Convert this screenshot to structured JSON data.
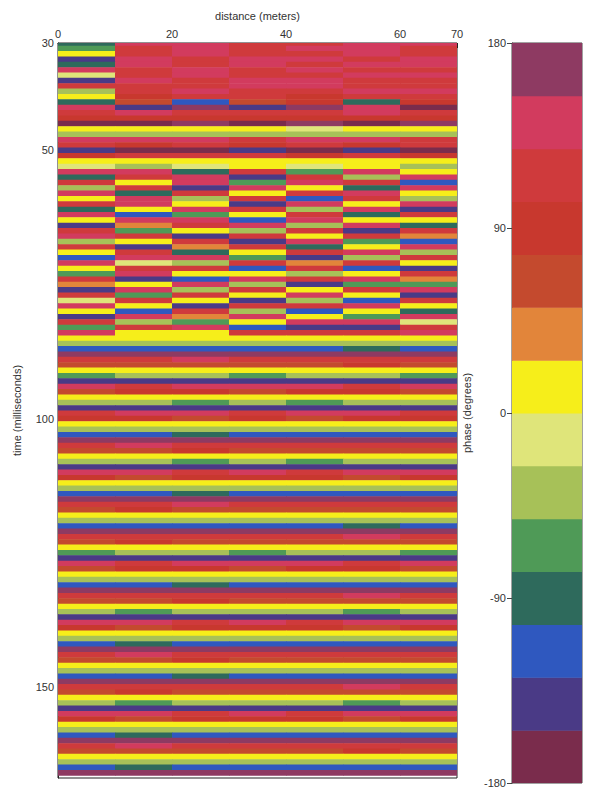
{
  "chart_data": {
    "type": "heatmap",
    "xlabel": "distance (meters)",
    "ylabel": "time (milliseconds)",
    "xlim": [
      0,
      70
    ],
    "xticks": [
      0,
      20,
      40,
      60,
      70
    ],
    "ylim": [
      30,
      167
    ],
    "yticks": [
      30,
      50,
      100,
      150
    ],
    "x": [
      5,
      15,
      25,
      35,
      45,
      55,
      65
    ],
    "y": [
      30,
      31,
      32,
      33,
      34,
      35,
      36,
      37,
      38,
      39,
      40,
      41,
      42,
      43,
      44,
      45,
      46,
      47,
      48,
      49,
      50,
      51,
      52,
      53,
      54,
      55,
      56,
      57,
      58,
      59,
      60,
      61,
      62,
      63,
      64,
      65,
      66,
      67,
      68,
      69,
      70,
      71,
      72,
      73,
      74,
      75,
      76,
      77,
      78,
      79,
      80,
      81,
      82,
      83,
      84,
      85,
      86,
      87,
      88,
      89,
      90,
      91,
      92,
      93,
      94,
      95,
      96,
      97,
      98,
      99,
      100,
      101,
      102,
      103,
      104,
      105,
      106,
      107,
      108,
      109,
      110,
      111,
      112,
      113,
      114,
      115,
      116,
      117,
      118,
      119,
      120,
      121,
      122,
      123,
      124,
      125,
      126,
      127,
      128,
      129,
      130,
      131,
      132,
      133,
      134,
      135,
      136,
      137,
      138,
      139,
      140,
      141,
      142,
      143,
      144,
      145,
      146,
      147,
      148,
      149,
      150,
      151,
      152,
      153,
      154,
      155,
      156,
      157,
      158,
      159,
      160,
      161,
      162,
      163,
      164,
      165,
      166
    ],
    "values": [
      [
        -100,
        130,
        140,
        125,
        120,
        135,
        130
      ],
      [
        -60,
        125,
        135,
        120,
        130,
        140,
        125
      ],
      [
        10,
        120,
        130,
        115,
        125,
        130,
        120
      ],
      [
        -130,
        135,
        120,
        130,
        140,
        125,
        130
      ],
      [
        -90,
        130,
        125,
        135,
        120,
        130,
        135
      ],
      [
        150,
        120,
        130,
        125,
        130,
        120,
        125
      ],
      [
        -20,
        125,
        135,
        120,
        125,
        135,
        130
      ],
      [
        -150,
        130,
        120,
        130,
        135,
        125,
        120
      ],
      [
        110,
        120,
        125,
        135,
        130,
        120,
        125
      ],
      [
        -40,
        115,
        130,
        120,
        125,
        130,
        130
      ],
      [
        20,
        100,
        110,
        105,
        100,
        110,
        105
      ],
      [
        -80,
        60,
        -120,
        70,
        80,
        -100,
        90
      ],
      [
        150,
        -150,
        160,
        -140,
        170,
        150,
        -160
      ],
      [
        120,
        130,
        110,
        125,
        120,
        130,
        115
      ],
      [
        80,
        90,
        85,
        100,
        90,
        95,
        85
      ],
      [
        -170,
        -160,
        170,
        -175,
        165,
        -170,
        175
      ],
      [
        10,
        5,
        0,
        8,
        -5,
        10,
        5
      ],
      [
        -40,
        -50,
        -30,
        -45,
        -35,
        -40,
        -50
      ],
      [
        140,
        130,
        135,
        125,
        140,
        130,
        120
      ],
      [
        110,
        100,
        105,
        95,
        110,
        100,
        105
      ],
      [
        -150,
        -160,
        -170,
        -150,
        -160,
        -140,
        -155
      ],
      [
        100,
        110,
        120,
        105,
        95,
        110,
        100
      ],
      [
        20,
        15,
        25,
        10,
        5,
        0,
        10
      ],
      [
        -20,
        -30,
        -10,
        15,
        -20,
        0,
        -30
      ],
      [
        130,
        140,
        -90,
        120,
        -60,
        130,
        20
      ],
      [
        -100,
        120,
        140,
        -150,
        110,
        -30,
        130
      ],
      [
        120,
        10,
        130,
        -60,
        140,
        120,
        -110
      ],
      [
        -30,
        120,
        -150,
        130,
        20,
        -90,
        140
      ],
      [
        130,
        -100,
        110,
        10,
        120,
        150,
        10
      ],
      [
        20,
        130,
        -40,
        120,
        -120,
        110,
        -40
      ],
      [
        120,
        150,
        10,
        -130,
        130,
        20,
        130
      ],
      [
        -90,
        20,
        130,
        110,
        -30,
        130,
        -150
      ],
      [
        130,
        -120,
        -60,
        20,
        120,
        -90,
        110
      ],
      [
        10,
        130,
        140,
        -110,
        150,
        10,
        20
      ],
      [
        -150,
        40,
        120,
        130,
        -40,
        130,
        -100
      ],
      [
        120,
        -60,
        10,
        -30,
        110,
        -140,
        120
      ],
      [
        130,
        120,
        -130,
        120,
        10,
        110,
        30
      ],
      [
        -40,
        10,
        120,
        -150,
        130,
        -60,
        -120
      ],
      [
        120,
        -130,
        30,
        110,
        -90,
        20,
        130
      ],
      [
        20,
        120,
        -100,
        10,
        120,
        130,
        -30
      ],
      [
        -110,
        130,
        130,
        -60,
        -140,
        -40,
        120
      ],
      [
        130,
        -20,
        -40,
        120,
        30,
        120,
        10
      ],
      [
        10,
        110,
        120,
        -120,
        120,
        -110,
        -130
      ],
      [
        -60,
        140,
        10,
        20,
        -50,
        10,
        120
      ],
      [
        120,
        -150,
        -110,
        130,
        110,
        130,
        40
      ],
      [
        40,
        20,
        130,
        -40,
        -130,
        -60,
        -60
      ],
      [
        -130,
        130,
        -30,
        120,
        10,
        120,
        130
      ],
      [
        120,
        -60,
        120,
        10,
        130,
        20,
        -140
      ],
      [
        -20,
        120,
        20,
        -140,
        -40,
        -120,
        110
      ],
      [
        130,
        10,
        -140,
        120,
        120,
        130,
        10
      ],
      [
        10,
        -110,
        120,
        -30,
        -110,
        10,
        -90
      ],
      [
        -150,
        130,
        30,
        130,
        20,
        -60,
        130
      ],
      [
        120,
        -40,
        -60,
        10,
        130,
        130,
        -20
      ],
      [
        -60,
        120,
        130,
        -120,
        -150,
        -140,
        120
      ],
      [
        130,
        20,
        10,
        120,
        120,
        120,
        130
      ],
      [
        10,
        20,
        5,
        15,
        0,
        10,
        15
      ],
      [
        -35,
        -45,
        -30,
        -40,
        -35,
        -50,
        -40
      ],
      [
        -120,
        -110,
        -105,
        -115,
        -110,
        -100,
        -115
      ],
      [
        170,
        180,
        165,
        175,
        160,
        170,
        175
      ],
      [
        125,
        115,
        130,
        120,
        125,
        110,
        120
      ],
      [
        60,
        70,
        75,
        65,
        70,
        80,
        65
      ],
      [
        15,
        5,
        20,
        10,
        15,
        0,
        10
      ],
      [
        -60,
        -50,
        -45,
        -55,
        -50,
        -40,
        -55
      ],
      [
        -140,
        -130,
        -145,
        -135,
        -150,
        -140,
        -135
      ],
      [
        135,
        125,
        140,
        130,
        135,
        120,
        130
      ],
      [
        70,
        80,
        85,
        75,
        80,
        90,
        75
      ],
      [
        0,
        10,
        15,
        5,
        10,
        20,
        5
      ],
      [
        -50,
        -40,
        -55,
        -45,
        -60,
        -50,
        -45
      ],
      [
        -135,
        -145,
        -130,
        -140,
        -135,
        -150,
        -140
      ],
      [
        120,
        130,
        135,
        125,
        130,
        140,
        125
      ],
      [
        80,
        90,
        75,
        85,
        70,
        80,
        85
      ],
      [
        10,
        20,
        5,
        15,
        0,
        10,
        15
      ],
      [
        -50,
        -40,
        -35,
        -45,
        -40,
        -30,
        -45
      ],
      [
        -105,
        -115,
        -100,
        -110,
        -105,
        -120,
        -110
      ],
      [
        160,
        170,
        175,
        165,
        170,
        180,
        165
      ],
      [
        120,
        130,
        115,
        125,
        110,
        120,
        125
      ],
      [
        75,
        65,
        80,
        70,
        75,
        60,
        70
      ],
      [
        15,
        5,
        20,
        10,
        15,
        0,
        10
      ],
      [
        -50,
        -40,
        -55,
        -45,
        -60,
        -50,
        -45
      ],
      [
        -150,
        -140,
        -135,
        -145,
        -140,
        -130,
        -145
      ],
      [
        130,
        140,
        125,
        135,
        120,
        130,
        135
      ],
      [
        85,
        75,
        90,
        80,
        85,
        70,
        80
      ],
      [
        0,
        10,
        15,
        5,
        10,
        20,
        5
      ],
      [
        -40,
        -30,
        -45,
        -35,
        -50,
        -40,
        -35
      ],
      [
        -105,
        -115,
        -100,
        -110,
        -105,
        -120,
        -110
      ],
      [
        160,
        170,
        175,
        165,
        170,
        180,
        165
      ],
      [
        125,
        115,
        130,
        120,
        125,
        110,
        120
      ],
      [
        70,
        80,
        65,
        75,
        60,
        70,
        75
      ],
      [
        10,
        20,
        5,
        15,
        0,
        10,
        15
      ],
      [
        -35,
        -45,
        -30,
        -40,
        -35,
        -50,
        -40
      ],
      [
        -120,
        -110,
        -105,
        -115,
        -110,
        -100,
        -115
      ],
      [
        175,
        165,
        180,
        170,
        175,
        160,
        170
      ],
      [
        110,
        120,
        125,
        115,
        120,
        130,
        115
      ],
      [
        70,
        80,
        65,
        75,
        60,
        70,
        75
      ],
      [
        15,
        5,
        20,
        10,
        15,
        0,
        10
      ],
      [
        -60,
        -50,
        -45,
        -55,
        -50,
        -40,
        -55
      ],
      [
        -140,
        -130,
        -145,
        -135,
        -150,
        -140,
        -135
      ],
      [
        135,
        125,
        140,
        130,
        135,
        120,
        130
      ],
      [
        70,
        80,
        85,
        75,
        80,
        90,
        75
      ],
      [
        0,
        10,
        15,
        5,
        10,
        20,
        5
      ],
      [
        -40,
        -30,
        -45,
        -35,
        -50,
        -40,
        -35
      ],
      [
        -105,
        -115,
        -100,
        -110,
        -105,
        -120,
        -110
      ],
      [
        170,
        180,
        165,
        175,
        160,
        170,
        175
      ],
      [
        110,
        120,
        125,
        115,
        120,
        130,
        115
      ],
      [
        75,
        65,
        80,
        70,
        75,
        60,
        70
      ],
      [
        10,
        20,
        5,
        15,
        0,
        10,
        15
      ],
      [
        -45,
        -55,
        -40,
        -50,
        -45,
        -60,
        -50
      ],
      [
        -150,
        -140,
        -135,
        -145,
        -140,
        -130,
        -145
      ],
      [
        130,
        140,
        125,
        135,
        120,
        130,
        135
      ],
      [
        85,
        75,
        90,
        80,
        85,
        70,
        80
      ],
      [
        15,
        5,
        20,
        10,
        15,
        0,
        10
      ],
      [
        -50,
        -40,
        -35,
        -45,
        -40,
        -30,
        -45
      ],
      [
        -110,
        -100,
        -115,
        -105,
        -120,
        -110,
        -105
      ],
      [
        160,
        170,
        175,
        165,
        170,
        180,
        165
      ],
      [
        120,
        130,
        115,
        125,
        110,
        120,
        125
      ],
      [
        75,
        65,
        80,
        70,
        75,
        60,
        70
      ],
      [
        0,
        10,
        15,
        5,
        10,
        20,
        5
      ],
      [
        -40,
        -30,
        -45,
        -35,
        -50,
        -40,
        -35
      ],
      [
        -105,
        -115,
        -100,
        -110,
        -105,
        -120,
        -110
      ],
      [
        170,
        180,
        165,
        175,
        160,
        170,
        175
      ],
      [
        110,
        120,
        125,
        115,
        120,
        130,
        115
      ],
      [
        70,
        80,
        65,
        75,
        60,
        70,
        75
      ],
      [
        10,
        20,
        5,
        15,
        0,
        10,
        15
      ],
      [
        -45,
        -55,
        -40,
        -50,
        -45,
        -60,
        -50
      ],
      [
        -150,
        -140,
        -135,
        -145,
        -140,
        -130,
        -145
      ],
      [
        130,
        140,
        125,
        135,
        120,
        130,
        135
      ],
      [
        85,
        75,
        90,
        80,
        85,
        70,
        80
      ],
      [
        15,
        5,
        20,
        10,
        15,
        0,
        10
      ],
      [
        -50,
        -40,
        -35,
        -45,
        -40,
        -30,
        -45
      ],
      [
        -110,
        -100,
        -115,
        -105,
        -120,
        -110,
        -105
      ],
      [
        175,
        165,
        180,
        170,
        175,
        160,
        170
      ],
      [
        120,
        130,
        115,
        125,
        110,
        120,
        125
      ],
      [
        60,
        70,
        75,
        65,
        70,
        80,
        65
      ],
      [
        0,
        10,
        15,
        5,
        10,
        20,
        5
      ],
      [
        -35,
        -45,
        -30,
        -40,
        -35,
        -50,
        -40
      ],
      [
        -110,
        -100,
        -115,
        -105,
        -120,
        -110,
        -105
      ],
      [
        160,
        170,
        175,
        165,
        170,
        180,
        165
      ]
    ],
    "colorbar": {
      "label": "phase (degrees)",
      "range": [
        -180,
        180
      ],
      "ticks": [
        -180,
        -90,
        0,
        90,
        180
      ],
      "colors": [
        "#7a2c4c",
        "#4a3a86",
        "#2f58bf",
        "#2e6a5c",
        "#4f9a57",
        "#a7c158",
        "#dfe57a",
        "#f6ee1a",
        "#e2853a",
        "#c44a2e",
        "#c8382e",
        "#cf3a3c",
        "#d23b5e",
        "#8e3a62"
      ]
    }
  }
}
